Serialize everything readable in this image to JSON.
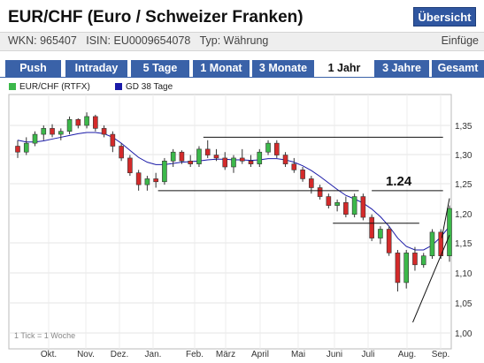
{
  "header": {
    "title": "EUR/CHF (Euro / Schweizer Franken)",
    "overview_button": "Übersicht"
  },
  "info": {
    "left": "WKN: 965407   ISIN: EU0009654078   Typ: Währung",
    "right": "Einfüge"
  },
  "tabs": [
    {
      "label": "Push",
      "active": false
    },
    {
      "label": "Intraday",
      "active": false
    },
    {
      "label": "5 Tage",
      "active": false
    },
    {
      "label": "1 Monat",
      "active": false
    },
    {
      "label": "3 Monate",
      "active": false
    },
    {
      "label": "1 Jahr",
      "active": true
    },
    {
      "label": "3 Jahre",
      "active": false
    },
    {
      "label": "Gesamt",
      "active": false
    }
  ],
  "legend": [
    {
      "label": "EUR/CHF (RTFX)",
      "color": "#3cb84a"
    },
    {
      "label": "GD 38 Tage",
      "color": "#1a1aa8"
    }
  ],
  "tick_note": "1 Tick = 1 Woche",
  "colors": {
    "up": "#3cb84a",
    "down": "#d42a2a",
    "ma": "#1a1aa8",
    "tab_bg": "#3a62a8",
    "button_bg": "#2f56a0"
  },
  "chart_data": {
    "type": "candlestick",
    "x_tick_labels": [
      "Okt.",
      "Nov.",
      "Dez.",
      "Jan.",
      "Feb.",
      "März",
      "April",
      "Mai",
      "Juni",
      "Juli",
      "Aug.",
      "Sep."
    ],
    "y_tick_labels": [
      "1,35",
      "1,30",
      "1,25",
      "1,20",
      "1,15",
      "1,10",
      "1,05",
      "1,00"
    ],
    "ylim": [
      0.995,
      1.375
    ],
    "annotation": "1.24",
    "candles": [
      [
        1.315,
        1.325,
        1.295,
        1.305
      ],
      [
        1.305,
        1.33,
        1.3,
        1.32
      ],
      [
        1.32,
        1.34,
        1.315,
        1.335
      ],
      [
        1.335,
        1.35,
        1.325,
        1.345
      ],
      [
        1.345,
        1.352,
        1.33,
        1.335
      ],
      [
        1.335,
        1.345,
        1.325,
        1.34
      ],
      [
        1.34,
        1.365,
        1.335,
        1.36
      ],
      [
        1.36,
        1.362,
        1.345,
        1.35
      ],
      [
        1.35,
        1.372,
        1.345,
        1.365
      ],
      [
        1.365,
        1.368,
        1.34,
        1.345
      ],
      [
        1.345,
        1.35,
        1.33,
        1.335
      ],
      [
        1.335,
        1.34,
        1.305,
        1.315
      ],
      [
        1.315,
        1.32,
        1.29,
        1.295
      ],
      [
        1.295,
        1.3,
        1.265,
        1.27
      ],
      [
        1.27,
        1.275,
        1.24,
        1.25
      ],
      [
        1.25,
        1.265,
        1.24,
        1.26
      ],
      [
        1.26,
        1.27,
        1.245,
        1.255
      ],
      [
        1.255,
        1.295,
        1.25,
        1.29
      ],
      [
        1.29,
        1.31,
        1.28,
        1.305
      ],
      [
        1.305,
        1.308,
        1.285,
        1.29
      ],
      [
        1.29,
        1.3,
        1.28,
        1.285
      ],
      [
        1.285,
        1.315,
        1.28,
        1.31
      ],
      [
        1.31,
        1.325,
        1.295,
        1.3
      ],
      [
        1.3,
        1.31,
        1.29,
        1.295
      ],
      [
        1.295,
        1.305,
        1.275,
        1.28
      ],
      [
        1.28,
        1.3,
        1.27,
        1.295
      ],
      [
        1.295,
        1.31,
        1.285,
        1.29
      ],
      [
        1.29,
        1.3,
        1.28,
        1.285
      ],
      [
        1.285,
        1.31,
        1.28,
        1.305
      ],
      [
        1.305,
        1.325,
        1.3,
        1.32
      ],
      [
        1.32,
        1.325,
        1.295,
        1.3
      ],
      [
        1.3,
        1.305,
        1.28,
        1.285
      ],
      [
        1.285,
        1.295,
        1.27,
        1.275
      ],
      [
        1.275,
        1.28,
        1.255,
        1.26
      ],
      [
        1.26,
        1.265,
        1.235,
        1.245
      ],
      [
        1.245,
        1.25,
        1.225,
        1.23
      ],
      [
        1.23,
        1.235,
        1.21,
        1.215
      ],
      [
        1.215,
        1.225,
        1.205,
        1.22
      ],
      [
        1.22,
        1.23,
        1.195,
        1.2
      ],
      [
        1.2,
        1.235,
        1.195,
        1.23
      ],
      [
        1.23,
        1.235,
        1.19,
        1.195
      ],
      [
        1.195,
        1.2,
        1.155,
        1.16
      ],
      [
        1.16,
        1.18,
        1.15,
        1.175
      ],
      [
        1.175,
        1.18,
        1.13,
        1.135
      ],
      [
        1.135,
        1.14,
        1.07,
        1.085
      ],
      [
        1.085,
        1.14,
        1.075,
        1.135
      ],
      [
        1.135,
        1.145,
        1.105,
        1.115
      ],
      [
        1.115,
        1.135,
        1.11,
        1.13
      ],
      [
        1.13,
        1.175,
        1.125,
        1.17
      ],
      [
        1.17,
        1.175,
        1.125,
        1.13
      ],
      [
        1.13,
        1.215,
        1.12,
        1.21
      ]
    ],
    "moving_average": [
      1.325,
      1.322,
      1.322,
      1.324,
      1.327,
      1.33,
      1.333,
      1.336,
      1.338,
      1.338,
      1.336,
      1.33,
      1.32,
      1.308,
      1.296,
      1.288,
      1.284,
      1.284,
      1.286,
      1.288,
      1.289,
      1.29,
      1.292,
      1.293,
      1.293,
      1.292,
      1.292,
      1.291,
      1.292,
      1.294,
      1.294,
      1.292,
      1.288,
      1.282,
      1.274,
      1.264,
      1.253,
      1.242,
      1.232,
      1.226,
      1.219,
      1.209,
      1.196,
      1.18,
      1.16,
      1.146,
      1.14,
      1.14,
      1.148,
      1.162,
      1.18
    ],
    "support_resistance_lines": [
      [
        1.33,
        1.33
      ],
      [
        1.24,
        1.24
      ],
      [
        1.24,
        1.24
      ],
      [
        1.185,
        1.185
      ]
    ],
    "trend_lines": [
      [
        1.018,
        1.165
      ],
      [
        1.16,
        1.227
      ]
    ]
  }
}
